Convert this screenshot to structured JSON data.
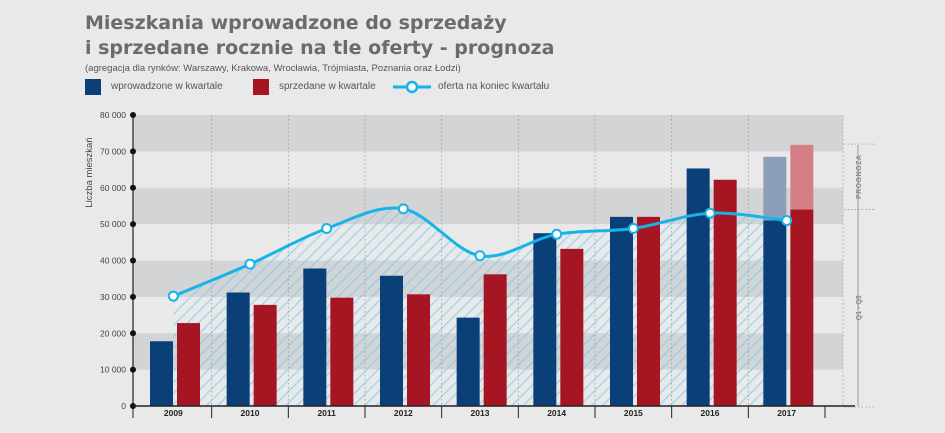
{
  "title_lines": [
    "Mieszkania wprowadzone do sprzedaży",
    "i sprzedane rocznie na tle oferty - prognoza"
  ],
  "subtitle": "(agregacja dla rynków: Warszawy, Krakowa, Wrocławia, Trójmiasta, Poznania oraz Łodzi)",
  "legend": {
    "introduced": "wprowadzone w kwartale",
    "sold": "sprzedane w kwartale",
    "offer": "oferta na koniec kwartału"
  },
  "colors": {
    "introduced": "#0b3f78",
    "sold": "#a51622",
    "offer": "#17b3e6",
    "forecast_introduced": "#8d9fb8",
    "forecast_sold": "#d37f85",
    "band": "#d3d4d6",
    "title": "#6b6b6b"
  },
  "chart_data": {
    "type": "bar",
    "ylabel": "Liczba mieszkań",
    "ylim": [
      0,
      80000
    ],
    "yticks": [
      "0",
      "10 000",
      "20 000",
      "30 000",
      "40 000",
      "50 000",
      "60 000",
      "70 000",
      "80 000"
    ],
    "categories": [
      "2009",
      "2010",
      "2011",
      "2012",
      "2013",
      "2014",
      "2015",
      "2016",
      "2017"
    ],
    "series": [
      {
        "name": "wprowadzone w kwartale",
        "type": "bar",
        "values": [
          17800,
          31200,
          37800,
          35800,
          24300,
          47500,
          52000,
          65300,
          51000
        ]
      },
      {
        "name": "sprzedane w kwartale",
        "type": "bar",
        "values": [
          22800,
          27800,
          29800,
          30700,
          36200,
          43200,
          52000,
          62200,
          54000
        ]
      },
      {
        "name": "oferta na koniec kwartału",
        "type": "line",
        "values": [
          30200,
          39000,
          48800,
          54200,
          41300,
          47200,
          48800,
          53000,
          51000
        ]
      }
    ],
    "forecast": {
      "label": "PROGNOZA",
      "period_label": "Q1 - Q3",
      "category": "2017",
      "introduced_total": 68500,
      "sold_total": 71800
    },
    "grid": "alternating horizontal bands",
    "legend_position": "top-left"
  }
}
